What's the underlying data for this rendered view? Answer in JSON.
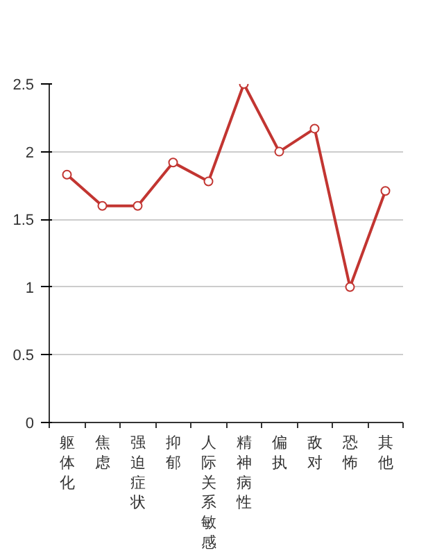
{
  "chart_data": {
    "type": "line",
    "categories": [
      "躯体化",
      "焦虑",
      "强迫症状",
      "抑郁",
      "人际关系敏感",
      "精神病性",
      "偏执",
      "敌对",
      "恐怖",
      "其他"
    ],
    "series": [
      {
        "color": "#c23531",
        "values": [
          1.83,
          1.6,
          1.6,
          1.92,
          1.78,
          2.5,
          2.0,
          2.17,
          1.0,
          1.71
        ]
      }
    ],
    "ylim": [
      0,
      2.5
    ],
    "yticks": [
      0,
      0.5,
      1,
      1.5,
      2,
      2.5
    ],
    "grid": "y",
    "marker": "circle",
    "line_style": "solid"
  }
}
